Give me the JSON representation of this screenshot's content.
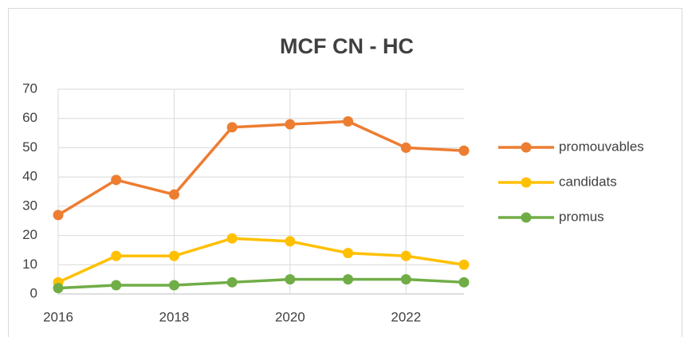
{
  "chart_data": {
    "type": "line",
    "title": "MCF CN - HC",
    "x": [
      2016,
      2017,
      2018,
      2019,
      2020,
      2021,
      2022,
      2023
    ],
    "xlim": [
      2016,
      2023
    ],
    "xticks": [
      2016,
      2018,
      2020,
      2022
    ],
    "ylim": [
      0,
      70
    ],
    "yticks": [
      0,
      10,
      20,
      30,
      40,
      50,
      60,
      70
    ],
    "grid": true,
    "legend": "right",
    "series": [
      {
        "name": "promouvables",
        "color": "#ed7d31",
        "values": [
          27,
          39,
          34,
          57,
          58,
          59,
          50,
          49
        ]
      },
      {
        "name": "candidats",
        "color": "#ffc000",
        "values": [
          4,
          13,
          13,
          19,
          18,
          14,
          13,
          10
        ]
      },
      {
        "name": "promus",
        "color": "#70ad47",
        "values": [
          2,
          3,
          3,
          4,
          5,
          5,
          5,
          4
        ]
      }
    ]
  }
}
